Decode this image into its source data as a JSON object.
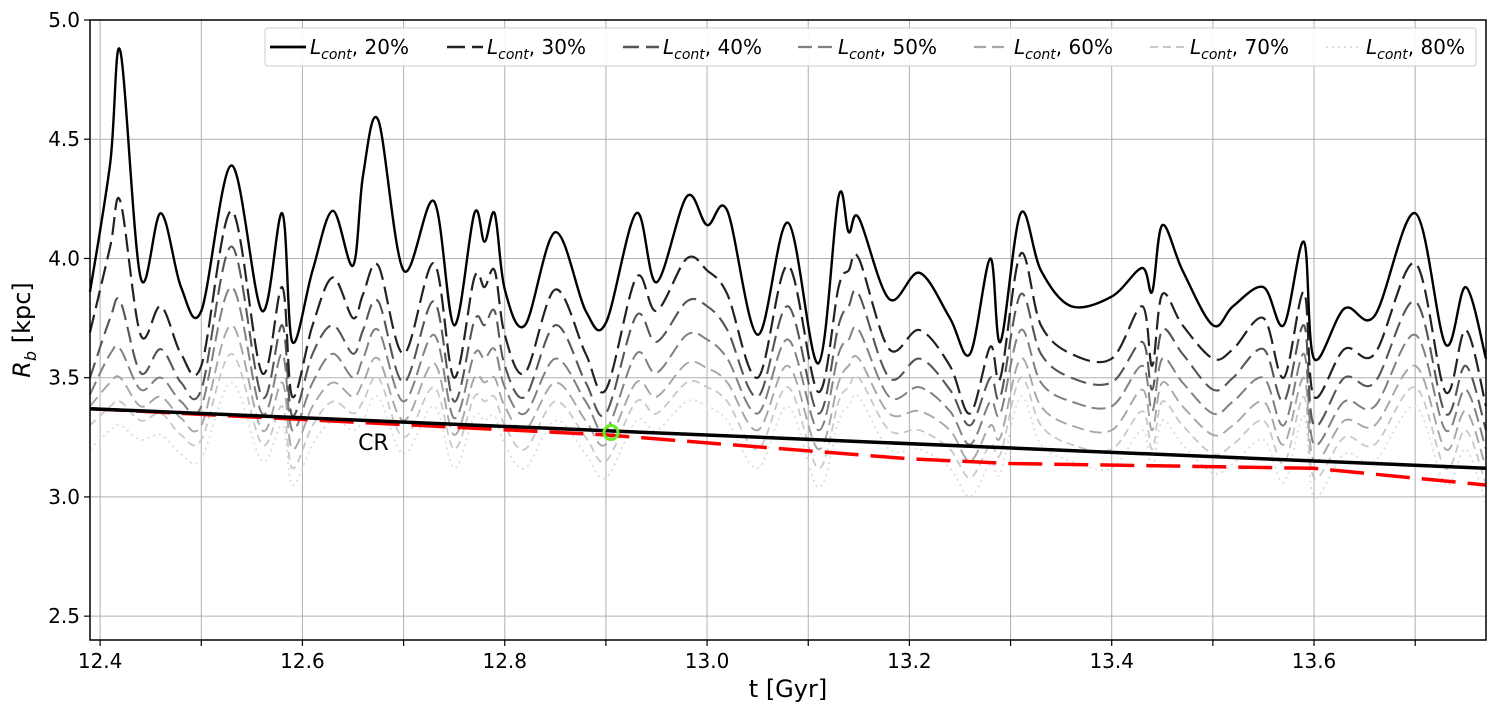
{
  "chart_data": {
    "type": "line",
    "xlabel": "t [Gyr]",
    "ylabel_main": "R",
    "ylabel_sub": "b",
    "ylabel_unit": " [kpc]",
    "xlim": [
      12.39,
      13.77
    ],
    "ylim": [
      2.4,
      5.0
    ],
    "xticks": [
      12.4,
      12.6,
      12.8,
      13.0,
      13.2,
      13.4,
      13.6
    ],
    "xtick_labels": [
      "12.4",
      "12.6",
      "12.8",
      "13.0",
      "13.2",
      "13.4",
      "13.6"
    ],
    "xgrid": [
      12.4,
      12.5,
      12.6,
      12.7,
      12.8,
      12.9,
      13.0,
      13.1,
      13.2,
      13.3,
      13.4,
      13.5,
      13.6,
      13.7
    ],
    "yticks": [
      2.5,
      3.0,
      3.5,
      4.0,
      4.5,
      5.0
    ],
    "ytick_labels": [
      "2.5",
      "3.0",
      "3.5",
      "4.0",
      "4.5",
      "5.0"
    ],
    "grid": true,
    "legend_position": "top-right",
    "x": [
      12.39,
      12.41,
      12.42,
      12.44,
      12.46,
      12.48,
      12.5,
      12.53,
      12.56,
      12.58,
      12.59,
      12.61,
      12.63,
      12.65,
      12.66,
      12.675,
      12.7,
      12.73,
      12.75,
      12.77,
      12.78,
      12.79,
      12.8,
      12.82,
      12.85,
      12.88,
      12.9,
      12.93,
      12.95,
      12.98,
      13.0,
      13.02,
      13.05,
      13.08,
      13.11,
      13.13,
      13.14,
      13.15,
      13.18,
      13.21,
      13.24,
      13.26,
      13.28,
      13.29,
      13.31,
      13.33,
      13.36,
      13.4,
      13.43,
      13.44,
      13.45,
      13.47,
      13.5,
      13.52,
      13.55,
      13.57,
      13.59,
      13.6,
      13.63,
      13.66,
      13.7,
      13.73,
      13.75,
      13.77
    ],
    "series": [
      {
        "name": "20%",
        "color": "#000000",
        "dash": "",
        "width": 2.4,
        "values": [
          3.86,
          4.4,
          4.87,
          3.92,
          4.19,
          3.88,
          3.78,
          4.39,
          3.78,
          4.19,
          3.65,
          3.95,
          4.2,
          3.97,
          4.35,
          4.58,
          3.95,
          4.24,
          3.72,
          4.19,
          4.07,
          4.19,
          3.87,
          3.72,
          4.11,
          3.78,
          3.73,
          4.19,
          3.9,
          4.26,
          4.14,
          4.2,
          3.68,
          4.15,
          3.56,
          4.26,
          4.11,
          4.17,
          3.83,
          3.94,
          3.75,
          3.6,
          4.0,
          3.65,
          4.19,
          3.95,
          3.8,
          3.84,
          3.96,
          3.86,
          4.14,
          3.95,
          3.72,
          3.8,
          3.88,
          3.72,
          4.07,
          3.58,
          3.79,
          3.76,
          4.19,
          3.64,
          3.88,
          3.58
        ]
      },
      {
        "name": "30%",
        "color": "#222222",
        "dash": "18,7",
        "width": 2.2,
        "values": [
          3.69,
          4.05,
          4.24,
          3.68,
          3.8,
          3.6,
          3.55,
          4.2,
          3.52,
          3.88,
          3.42,
          3.72,
          3.92,
          3.75,
          3.85,
          3.97,
          3.6,
          3.98,
          3.5,
          3.92,
          3.88,
          3.95,
          3.68,
          3.52,
          3.87,
          3.6,
          3.45,
          3.92,
          3.78,
          4.0,
          3.95,
          3.85,
          3.5,
          3.97,
          3.44,
          3.88,
          3.95,
          4.0,
          3.62,
          3.7,
          3.55,
          3.35,
          3.63,
          3.5,
          4.02,
          3.72,
          3.6,
          3.58,
          3.8,
          3.55,
          3.85,
          3.72,
          3.58,
          3.62,
          3.75,
          3.5,
          3.86,
          3.42,
          3.62,
          3.6,
          3.98,
          3.44,
          3.7,
          3.38
        ]
      },
      {
        "name": "40%",
        "color": "#555555",
        "dash": "16,7",
        "width": 2.1,
        "values": [
          3.5,
          3.75,
          3.82,
          3.52,
          3.62,
          3.48,
          3.45,
          4.05,
          3.42,
          3.72,
          3.34,
          3.6,
          3.72,
          3.6,
          3.7,
          3.82,
          3.48,
          3.82,
          3.4,
          3.74,
          3.72,
          3.78,
          3.55,
          3.42,
          3.72,
          3.48,
          3.35,
          3.76,
          3.65,
          3.82,
          3.8,
          3.7,
          3.42,
          3.8,
          3.35,
          3.72,
          3.8,
          3.85,
          3.5,
          3.58,
          3.45,
          3.3,
          3.5,
          3.42,
          3.85,
          3.6,
          3.5,
          3.48,
          3.65,
          3.45,
          3.7,
          3.6,
          3.45,
          3.5,
          3.62,
          3.4,
          3.72,
          3.3,
          3.5,
          3.48,
          3.82,
          3.35,
          3.55,
          3.28
        ]
      },
      {
        "name": "50%",
        "color": "#808080",
        "dash": "14,6",
        "width": 2.0,
        "values": [
          3.43,
          3.6,
          3.62,
          3.45,
          3.5,
          3.4,
          3.38,
          3.88,
          3.35,
          3.6,
          3.28,
          3.48,
          3.6,
          3.5,
          3.58,
          3.7,
          3.4,
          3.68,
          3.33,
          3.6,
          3.58,
          3.62,
          3.46,
          3.35,
          3.58,
          3.4,
          3.28,
          3.6,
          3.52,
          3.68,
          3.66,
          3.58,
          3.35,
          3.66,
          3.28,
          3.6,
          3.66,
          3.7,
          3.42,
          3.46,
          3.36,
          3.22,
          3.4,
          3.35,
          3.7,
          3.48,
          3.4,
          3.38,
          3.55,
          3.36,
          3.58,
          3.48,
          3.35,
          3.4,
          3.5,
          3.3,
          3.6,
          3.22,
          3.4,
          3.38,
          3.68,
          3.28,
          3.45,
          3.2
        ]
      },
      {
        "name": "60%",
        "color": "#a6a6a6",
        "dash": "12,6",
        "width": 1.9,
        "values": [
          3.38,
          3.48,
          3.5,
          3.38,
          3.42,
          3.33,
          3.3,
          3.72,
          3.28,
          3.48,
          3.2,
          3.38,
          3.48,
          3.42,
          3.48,
          3.58,
          3.32,
          3.56,
          3.26,
          3.5,
          3.48,
          3.5,
          3.38,
          3.28,
          3.48,
          3.32,
          3.22,
          3.48,
          3.42,
          3.56,
          3.54,
          3.48,
          3.28,
          3.55,
          3.2,
          3.48,
          3.55,
          3.58,
          3.35,
          3.36,
          3.28,
          3.15,
          3.3,
          3.25,
          3.58,
          3.38,
          3.3,
          3.28,
          3.45,
          3.28,
          3.48,
          3.38,
          3.26,
          3.3,
          3.4,
          3.22,
          3.5,
          3.15,
          3.32,
          3.3,
          3.55,
          3.2,
          3.36,
          3.12
        ]
      },
      {
        "name": "70%",
        "color": "#c8c8c8",
        "dash": "8,5",
        "width": 1.8,
        "values": [
          3.3,
          3.38,
          3.4,
          3.32,
          3.35,
          3.26,
          3.24,
          3.6,
          3.22,
          3.38,
          3.12,
          3.3,
          3.4,
          3.35,
          3.4,
          3.5,
          3.25,
          3.46,
          3.2,
          3.42,
          3.4,
          3.42,
          3.3,
          3.2,
          3.4,
          3.25,
          3.15,
          3.4,
          3.35,
          3.48,
          3.46,
          3.4,
          3.2,
          3.46,
          3.12,
          3.4,
          3.46,
          3.5,
          3.28,
          3.28,
          3.2,
          3.08,
          3.22,
          3.18,
          3.5,
          3.3,
          3.22,
          3.2,
          3.36,
          3.2,
          3.4,
          3.3,
          3.18,
          3.22,
          3.32,
          3.14,
          3.42,
          3.08,
          3.25,
          3.22,
          3.46,
          3.12,
          3.28,
          3.05
        ]
      },
      {
        "name": "80%",
        "color": "#dcdcdc",
        "dash": "2,4",
        "width": 1.8,
        "values": [
          3.2,
          3.28,
          3.3,
          3.24,
          3.26,
          3.18,
          3.16,
          3.48,
          3.15,
          3.3,
          3.05,
          3.22,
          3.32,
          3.28,
          3.32,
          3.42,
          3.18,
          3.38,
          3.12,
          3.34,
          3.32,
          3.34,
          3.22,
          3.12,
          3.32,
          3.18,
          3.08,
          3.32,
          3.28,
          3.4,
          3.38,
          3.32,
          3.12,
          3.38,
          3.04,
          3.32,
          3.38,
          3.42,
          3.2,
          3.2,
          3.12,
          3.0,
          3.14,
          3.1,
          3.42,
          3.22,
          3.15,
          3.12,
          3.28,
          3.12,
          3.32,
          3.22,
          3.1,
          3.14,
          3.24,
          3.06,
          3.34,
          3.0,
          3.18,
          3.15,
          3.38,
          3.05,
          3.2,
          2.97
        ]
      }
    ],
    "legend_entries": [
      {
        "main": "L",
        "sub": "cont",
        "suffix": ", 20%",
        "color": "#000000",
        "dash": "",
        "width": 2.4
      },
      {
        "main": "L",
        "sub": "cont",
        "suffix": ", 30%",
        "color": "#222222",
        "dash": "18,7",
        "width": 2.2
      },
      {
        "main": "L",
        "sub": "cont",
        "suffix": ", 40%",
        "color": "#555555",
        "dash": "16,7",
        "width": 2.1
      },
      {
        "main": "L",
        "sub": "cont",
        "suffix": ", 50%",
        "color": "#808080",
        "dash": "14,6",
        "width": 2.0
      },
      {
        "main": "L",
        "sub": "cont",
        "suffix": ", 60%",
        "color": "#a6a6a6",
        "dash": "12,6",
        "width": 1.9
      },
      {
        "main": "L",
        "sub": "cont",
        "suffix": ", 70%",
        "color": "#c8c8c8",
        "dash": "8,5",
        "width": 1.8
      },
      {
        "main": "L",
        "sub": "cont",
        "suffix": ", 80%",
        "color": "#dcdcdc",
        "dash": "2,4",
        "width": 1.8
      }
    ],
    "cr_line": {
      "x": [
        12.39,
        13.77
      ],
      "values": [
        3.37,
        3.12
      ],
      "color": "#000000"
    },
    "red_dashed_line": {
      "x": [
        12.39,
        12.9,
        13.2,
        13.3,
        13.6,
        13.77
      ],
      "values": [
        3.37,
        3.26,
        3.16,
        3.14,
        3.12,
        3.05
      ],
      "color": "#ff0000"
    },
    "marker": {
      "x": 12.905,
      "y": 3.27,
      "color": "#66ee22"
    },
    "annotation": {
      "text": "CR",
      "x": 12.655,
      "y": 3.23
    }
  }
}
